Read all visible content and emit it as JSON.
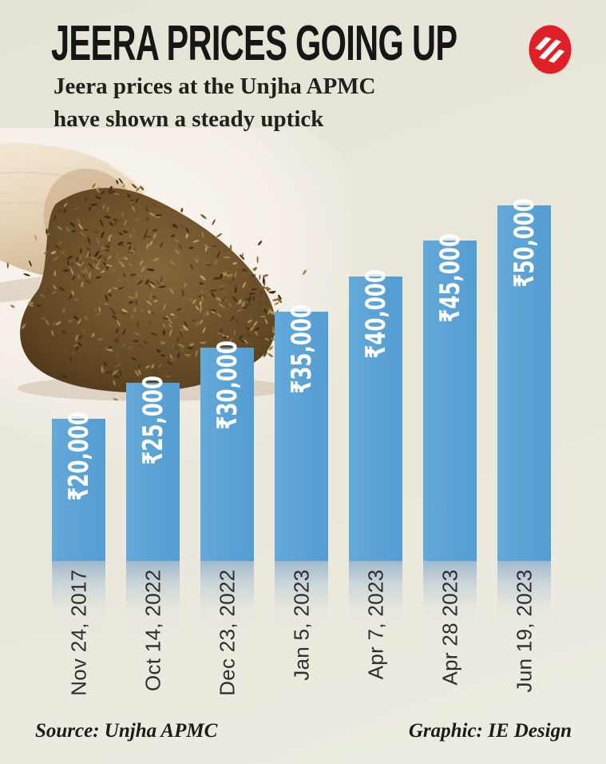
{
  "header": {
    "title": "JEERA PRICES GOING UP",
    "subtitle_lines": [
      "Jeera prices at the Unjha APMC",
      "have shown a steady uptick"
    ],
    "logo": {
      "name": "Indian Express monogram",
      "color": "#e01f27",
      "stripe_color": "#ffffff"
    }
  },
  "chart_data": {
    "type": "bar",
    "title": "JEERA PRICES GOING UP",
    "subtitle": "Jeera prices at the Unjha APMC have shown a steady uptick",
    "categories": [
      "Nov 24, 2017",
      "Oct 14, 2022",
      "Dec 23, 2022",
      "Jan 5, 2023",
      "Apr 7, 2023",
      "Apr 28 2023",
      "Jun 19, 2023"
    ],
    "values": [
      20000,
      25000,
      30000,
      35000,
      40000,
      45000,
      50000
    ],
    "value_labels": [
      "₹20,000",
      "₹25,000",
      "₹30,000",
      "₹35,000",
      "₹40,000",
      "₹45,000",
      "₹50,000"
    ],
    "currency": "INR",
    "xlabel": "",
    "ylabel": "",
    "ylim": [
      0,
      50000
    ],
    "orientation": "vertical",
    "grid": false,
    "legend": false,
    "bar_color": "#549dd2",
    "bar_color_light": "#63a9d9",
    "value_label_color": "#ffffff",
    "axis_label_color": "#2e2e2c",
    "reflection_below_baseline": true
  },
  "photo": {
    "description": "wooden scoop spilling a pile of cumin (jeera) seeds",
    "wood_color": "#e8d5ba",
    "seed_color": "#6f5229"
  },
  "footer": {
    "source": "Source: Unjha APMC",
    "credit": "Graphic: IE Design"
  },
  "colors": {
    "background": "#e9e6db",
    "title_text": "#161616",
    "accent_red": "#e01f27"
  }
}
